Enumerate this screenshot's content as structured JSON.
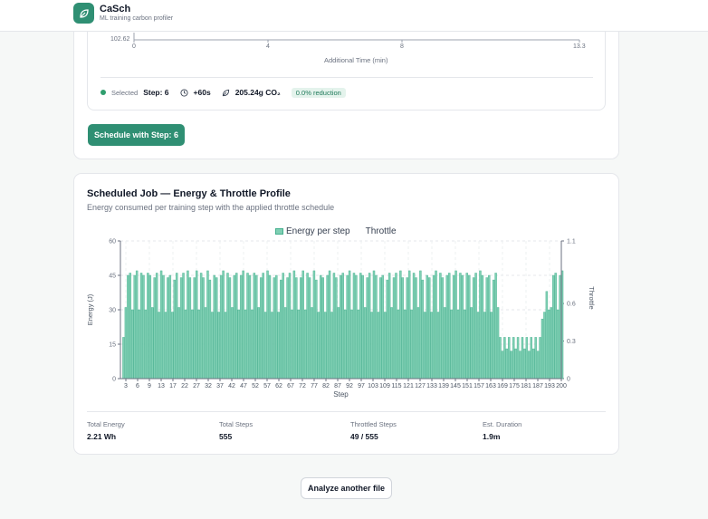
{
  "app": {
    "name": "CaSch",
    "tagline": "ML training carbon profiler",
    "logo_icon": "leaf-icon"
  },
  "tradeoff_chart": {
    "y_tick": "102.62",
    "x_ticks": [
      "0",
      "4",
      "8",
      "13.3"
    ],
    "xlabel": "Additional Time (min)"
  },
  "selection": {
    "selected_label": "Selected",
    "step": "Step: 6",
    "time_icon": "clock-icon",
    "time": "+60s",
    "co2_icon": "leaf-icon",
    "co2": "205.24g CO₂",
    "reduction": "0.0% reduction"
  },
  "schedule_button": "Schedule with Step: 6",
  "profile": {
    "title": "Scheduled Job — Energy & Throttle Profile",
    "subtitle": "Energy consumed per training step with the applied throttle schedule"
  },
  "chart_data": {
    "type": "bar",
    "legend": [
      "Energy per step",
      "Throttle"
    ],
    "xlabel": "Step",
    "ylabel": "Energy (J)",
    "y2label": "Throttle",
    "ylim": [
      0,
      60
    ],
    "y2lim": [
      0,
      1.1
    ],
    "y_ticks": [
      "0",
      "15",
      "30",
      "45",
      "60"
    ],
    "y2_ticks": [
      "0",
      "0.3",
      "0.6",
      "1.1"
    ],
    "x_ticks": [
      "3",
      "6",
      "9",
      "13",
      "17",
      "22",
      "27",
      "32",
      "37",
      "42",
      "47",
      "52",
      "57",
      "62",
      "67",
      "72",
      "77",
      "82",
      "87",
      "92",
      "97",
      "103",
      "109",
      "115",
      "121",
      "127",
      "133",
      "139",
      "145",
      "151",
      "157",
      "163",
      "169",
      "175",
      "181",
      "187",
      "193",
      "200"
    ],
    "x_range": [
      1,
      200
    ],
    "throttled_range": [
      172,
      190
    ],
    "energy_high": [
      44,
      46,
      44,
      47,
      45,
      46,
      44,
      45,
      47,
      43,
      46,
      45,
      44,
      46,
      45,
      47
    ],
    "energy_low": [
      29,
      30,
      29,
      31,
      30,
      29,
      30,
      31
    ],
    "energy_throttled": [
      18,
      12,
      18,
      13,
      18,
      12,
      18,
      13
    ]
  },
  "stats": [
    {
      "label": "Total Energy",
      "value": "2.21 Wh"
    },
    {
      "label": "Total Steps",
      "value": "555"
    },
    {
      "label": "Throttled Steps",
      "value": "49 / 555"
    },
    {
      "label": "Est. Duration",
      "value": "1.9m"
    }
  ],
  "analyze_button": "Analyze another file",
  "colors": {
    "accent": "#2f8f73",
    "bar_fill": "#7fcfb3",
    "bar_stroke": "#45b08e"
  }
}
